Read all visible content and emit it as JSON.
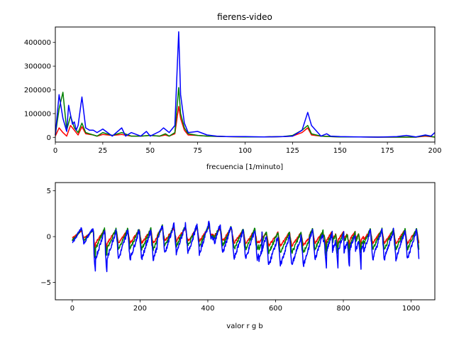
{
  "chart_data": [
    {
      "type": "line",
      "title": "fierens-video",
      "xlabel": "frecuencia [1/minuto]",
      "ylabel": "",
      "xlim": [
        0,
        200
      ],
      "ylim": [
        -20000,
        465000
      ],
      "xticks": [
        0,
        25,
        50,
        75,
        100,
        125,
        150,
        175,
        200
      ],
      "yticks": [
        0,
        100000,
        200000,
        300000,
        400000
      ],
      "xtick_labels": [
        "0",
        "25",
        "50",
        "75",
        "100",
        "125",
        "150",
        "175",
        "200"
      ],
      "ytick_labels": [
        "0",
        "100000",
        "200000",
        "300000",
        "400000"
      ],
      "grid": false,
      "series": [
        {
          "color": "#ff0000",
          "x": [
            0,
            2,
            4,
            6,
            8,
            10,
            12,
            14,
            16,
            20,
            22,
            25,
            30,
            35,
            40,
            45,
            50,
            55,
            58,
            60,
            63,
            65,
            66,
            68,
            70,
            75,
            80,
            90,
            100,
            110,
            120,
            125,
            130,
            133,
            135,
            140,
            145,
            150,
            160,
            170,
            180,
            190,
            195,
            200
          ],
          "y": [
            5000,
            40000,
            20000,
            5000,
            50000,
            30000,
            10000,
            45000,
            15000,
            10000,
            5000,
            12000,
            8000,
            12000,
            5000,
            5000,
            8000,
            5000,
            10000,
            5000,
            15000,
            130000,
            80000,
            30000,
            10000,
            8000,
            5000,
            3000,
            2000,
            2000,
            3000,
            5000,
            20000,
            40000,
            10000,
            5000,
            3000,
            2000,
            2000,
            1000,
            1000,
            1000,
            5000,
            1000
          ]
        },
        {
          "color": "#008000",
          "x": [
            0,
            2,
            4,
            6,
            8,
            10,
            12,
            14,
            16,
            20,
            22,
            25,
            30,
            35,
            40,
            45,
            50,
            55,
            58,
            60,
            63,
            65,
            66,
            68,
            70,
            75,
            80,
            90,
            100,
            110,
            120,
            125,
            130,
            133,
            135,
            140,
            145,
            150,
            160,
            170,
            180,
            190,
            195,
            200
          ],
          "y": [
            10000,
            120000,
            190000,
            30000,
            90000,
            40000,
            20000,
            60000,
            20000,
            10000,
            5000,
            20000,
            8000,
            20000,
            5000,
            5000,
            8000,
            5000,
            15000,
            5000,
            20000,
            210000,
            100000,
            40000,
            15000,
            8000,
            5000,
            3000,
            2000,
            2000,
            3000,
            8000,
            30000,
            50000,
            15000,
            5000,
            3000,
            2000,
            2000,
            1000,
            1000,
            1000,
            8000,
            1000
          ]
        },
        {
          "color": "#0000ff",
          "x": [
            0,
            2,
            4,
            6,
            7,
            9,
            10,
            11,
            12,
            14,
            16,
            18,
            20,
            22,
            25,
            30,
            35,
            37,
            40,
            45,
            48,
            50,
            55,
            57,
            60,
            63,
            65,
            66,
            68,
            70,
            75,
            80,
            85,
            90,
            100,
            110,
            120,
            125,
            130,
            133,
            135,
            140,
            143,
            145,
            150,
            160,
            170,
            180,
            185,
            190,
            195,
            198,
            200
          ],
          "y": [
            10000,
            180000,
            80000,
            25000,
            135000,
            55000,
            65000,
            30000,
            50000,
            170000,
            40000,
            30000,
            30000,
            20000,
            35000,
            5000,
            40000,
            5000,
            20000,
            5000,
            25000,
            5000,
            25000,
            40000,
            20000,
            50000,
            445000,
            180000,
            60000,
            20000,
            25000,
            10000,
            5000,
            3000,
            3000,
            2000,
            3000,
            5000,
            30000,
            105000,
            50000,
            5000,
            15000,
            5000,
            3000,
            2000,
            1000,
            3000,
            8000,
            2000,
            10000,
            5000,
            20000
          ]
        }
      ]
    },
    {
      "type": "line",
      "title": "",
      "xlabel": "valor r g b",
      "ylabel": "",
      "xlim": [
        -50,
        1070
      ],
      "ylim": [
        -6.9,
        5.9
      ],
      "xticks": [
        0,
        200,
        400,
        600,
        800,
        1000
      ],
      "yticks": [
        -5,
        0,
        5
      ],
      "xtick_labels": [
        "0",
        "200",
        "400",
        "600",
        "800",
        "1000"
      ],
      "ytick_labels": [
        "−5",
        "0",
        "5"
      ],
      "grid": false,
      "series": [
        {
          "color": "#ff0000",
          "baseline": -0.3,
          "amplitude": 0.45,
          "offset": 0.15,
          "trend_scale": 0.4,
          "seed": 17
        },
        {
          "color": "#008000",
          "baseline": -0.55,
          "amplitude": 0.7,
          "offset": 0.05,
          "trend_scale": 0.55,
          "seed": 29
        },
        {
          "color": "#0000ff",
          "baseline": -1.2,
          "amplitude": 1.0,
          "offset": 0.0,
          "trend_scale": 1.0,
          "seed": 43
        }
      ]
    }
  ]
}
